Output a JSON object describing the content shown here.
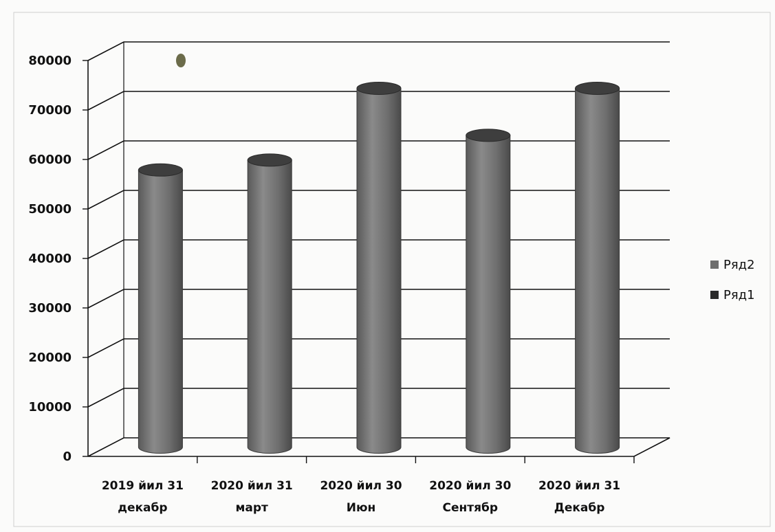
{
  "chart_data": {
    "type": "bar",
    "style": "3d-cylinder",
    "categories": [
      [
        "2019 йил 31",
        "декабр"
      ],
      [
        "2020 йил 31",
        "март"
      ],
      [
        "2020 йил 30",
        "Июн"
      ],
      [
        "2020 йил 30",
        "Сентябр"
      ],
      [
        "2020 йил 31",
        "Декабр"
      ]
    ],
    "series": [
      {
        "name": "Ряд2",
        "values": [
          56000,
          58000,
          72500,
          63000,
          72500
        ],
        "color": "#6e6e6e"
      },
      {
        "name": "Ряд1",
        "values": [
          0,
          0,
          0,
          0,
          0
        ],
        "color": "#2a2a2a"
      }
    ],
    "yticks": [
      "0",
      "10000",
      "20000",
      "30000",
      "40000",
      "50000",
      "60000",
      "70000",
      "80000"
    ],
    "ylim": [
      0,
      80000
    ],
    "grid": true,
    "legend_position": "right",
    "title": "",
    "xlabel": "",
    "ylabel": ""
  }
}
